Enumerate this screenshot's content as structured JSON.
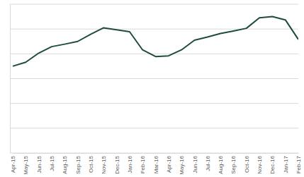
{
  "chart_data": {
    "type": "line",
    "categories": [
      "Apr-15",
      "May-15",
      "Jun-15",
      "Jul-15",
      "Aug-15",
      "Sep-15",
      "Oct-15",
      "Nov-15",
      "Dec-15",
      "Jan-16",
      "Feb-16",
      "Mar-16",
      "Apr-16",
      "May-16",
      "Jun-16",
      "Jul-16",
      "Aug-16",
      "Sep-16",
      "Oct-16",
      "Nov-16",
      "Dec-16",
      "Jan-17",
      "Feb-17"
    ],
    "values": [
      3.5,
      3.66,
      4.03,
      4.29,
      4.39,
      4.5,
      4.79,
      5.05,
      4.97,
      4.89,
      4.16,
      3.89,
      3.92,
      4.16,
      4.55,
      4.68,
      4.82,
      4.92,
      5.03,
      5.45,
      5.5,
      5.37,
      4.58
    ],
    "color": "#1e4d36",
    "ylim": [
      0,
      6
    ],
    "yticks": [
      0,
      1,
      2,
      3,
      4,
      5,
      6
    ],
    "grid": true,
    "tick_labels": "x"
  }
}
